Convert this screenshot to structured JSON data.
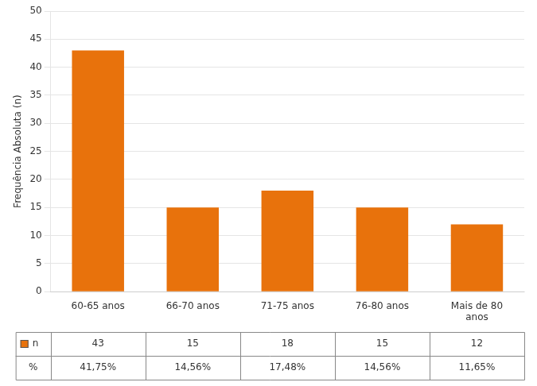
{
  "chart_data": {
    "type": "bar",
    "categories": [
      "60-65 anos",
      "66-70 anos",
      "71-75 anos",
      "76-80 anos",
      "Mais de 80\nanos"
    ],
    "values": [
      43,
      15,
      18,
      15,
      12
    ],
    "color": "#E8720C",
    "ylabel": "Frequência Absoluta (n)",
    "ylim": [
      0,
      50
    ],
    "yticks": [
      0,
      5,
      10,
      15,
      20,
      25,
      30,
      35,
      40,
      45,
      50
    ],
    "grid": true,
    "table": [
      {
        "name": "n",
        "color": "#E8720C",
        "marker": "square",
        "values": [
          43,
          15,
          18,
          15,
          12
        ]
      },
      {
        "name": "%",
        "values": [
          41.75,
          14.56,
          17.48,
          14.56,
          11.65
        ],
        "value_labels": [
          "41,75%",
          "14,56%",
          "17,48%",
          "14,56%",
          "11,65%"
        ]
      }
    ]
  }
}
